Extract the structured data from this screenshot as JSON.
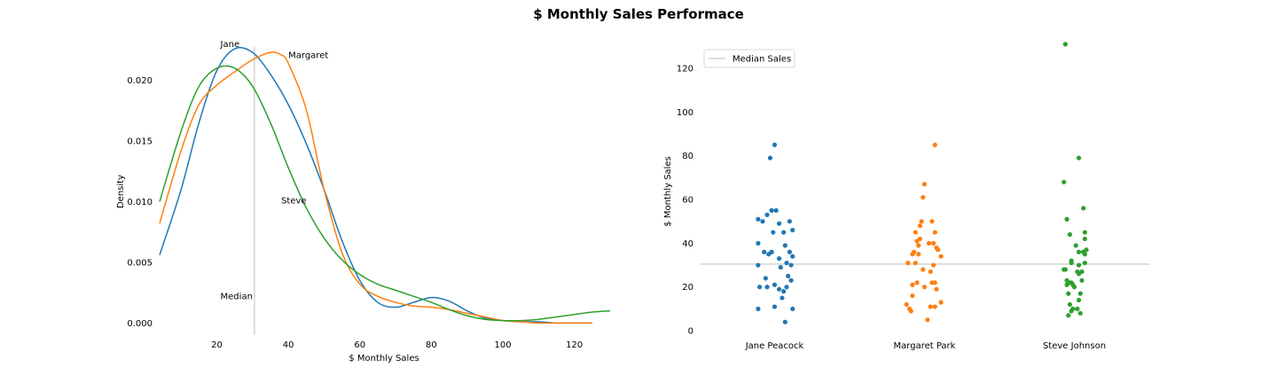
{
  "figure": {
    "title": "$ Monthly Sales Performace"
  },
  "chart_data": [
    {
      "type": "line",
      "subtype": "kde-density",
      "xlabel": "$ Monthly Sales",
      "ylabel": "Density",
      "xlim": [
        4,
        130
      ],
      "ylim": [
        -0.001,
        0.0237
      ],
      "xticks": [
        20,
        40,
        60,
        80,
        100,
        120
      ],
      "yticks": [
        0.0,
        0.005,
        0.01,
        0.015,
        0.02
      ],
      "ytick_labels": [
        "0.000",
        "0.005",
        "0.010",
        "0.015",
        "0.020"
      ],
      "grid": false,
      "median_line": {
        "x": 30.5,
        "color": "#d3d3d3",
        "label": "Median"
      },
      "annotations": [
        {
          "text": "Jane",
          "x": 21,
          "y": 0.023
        },
        {
          "text": "Margaret",
          "x": 40,
          "y": 0.0221
        },
        {
          "text": "Steve",
          "x": 38,
          "y": 0.0101
        },
        {
          "text": "Median",
          "x": 21,
          "y": 0.0022
        }
      ],
      "series": [
        {
          "color": "#1f77b4",
          "x": [
            4,
            10,
            15,
            20,
            25,
            30,
            35,
            40,
            45,
            50,
            55,
            60,
            65,
            70,
            75,
            80,
            85,
            90,
            95,
            100,
            105,
            110,
            115,
            120,
            125
          ],
          "y": [
            0.0056,
            0.011,
            0.0165,
            0.0208,
            0.0226,
            0.0223,
            0.0205,
            0.018,
            0.0148,
            0.011,
            0.0068,
            0.0035,
            0.0017,
            0.0013,
            0.0017,
            0.0021,
            0.0018,
            0.001,
            0.0004,
            0.0002,
            0.0001,
            0.0001,
            0.0,
            0.0,
            0.0
          ]
        },
        {
          "color": "#ff7f0e",
          "x": [
            4,
            10,
            15,
            20,
            25,
            30,
            35,
            38,
            40,
            45,
            50,
            55,
            60,
            65,
            70,
            75,
            80,
            85,
            90,
            95,
            100,
            105,
            110,
            115,
            120,
            125
          ],
          "y": [
            0.0082,
            0.0142,
            0.018,
            0.0196,
            0.0207,
            0.0217,
            0.0223,
            0.0221,
            0.0214,
            0.0176,
            0.011,
            0.0058,
            0.0032,
            0.0022,
            0.0017,
            0.0014,
            0.0013,
            0.0011,
            0.0008,
            0.0005,
            0.0002,
            0.0001,
            0.0,
            0.0,
            0.0,
            0.0
          ]
        },
        {
          "color": "#2ca02c",
          "x": [
            4,
            10,
            15,
            20,
            25,
            30,
            35,
            40,
            45,
            50,
            55,
            60,
            65,
            70,
            75,
            80,
            85,
            90,
            95,
            100,
            105,
            110,
            115,
            120,
            125,
            130
          ],
          "y": [
            0.01,
            0.0158,
            0.0195,
            0.021,
            0.021,
            0.0195,
            0.0165,
            0.0128,
            0.0095,
            0.007,
            0.0052,
            0.004,
            0.0032,
            0.0027,
            0.0022,
            0.0017,
            0.0011,
            0.0006,
            0.0003,
            0.0002,
            0.0002,
            0.0003,
            0.0005,
            0.0007,
            0.0009,
            0.001
          ]
        }
      ]
    },
    {
      "type": "scatter",
      "subtype": "strip",
      "xlabel": "",
      "ylabel": "$ Monthly Sales",
      "categories": [
        "Jane Peacock",
        "Margaret Park",
        "Steve Johnson"
      ],
      "ylim": [
        -2,
        135
      ],
      "yticks": [
        0,
        20,
        40,
        60,
        80,
        100,
        120
      ],
      "grid": false,
      "legend": {
        "placement": "top-left",
        "entries": [
          {
            "label": "Median Sales",
            "color": "#d3d3d3"
          }
        ]
      },
      "median_line": {
        "y": 30.5,
        "color": "#d3d3d3"
      },
      "series": [
        {
          "category": "Jane Peacock",
          "color": "#1f77b4",
          "values": [
            85,
            79,
            55,
            55,
            53,
            51,
            50,
            50,
            49,
            46,
            45,
            45,
            40,
            39,
            36,
            36,
            36,
            35,
            34,
            33,
            31,
            30,
            30,
            29,
            25,
            24,
            23,
            21,
            20,
            20,
            20,
            19,
            18,
            15,
            11,
            10,
            10,
            4
          ],
          "jitter": [
            0.0,
            -0.03,
            -0.02,
            0.01,
            -0.05,
            -0.11,
            -0.08,
            0.1,
            0.03,
            0.12,
            0.06,
            -0.01,
            -0.11,
            0.07,
            0.1,
            -0.07,
            -0.02,
            -0.04,
            0.12,
            0.03,
            0.08,
            -0.11,
            0.11,
            0.04,
            0.09,
            -0.06,
            0.11,
            0.0,
            0.08,
            -0.1,
            -0.05,
            0.03,
            0.06,
            0.05,
            0.0,
            -0.11,
            0.12,
            0.07
          ]
        },
        {
          "category": "Margaret Park",
          "color": "#ff7f0e",
          "values": [
            85,
            67,
            61,
            50,
            50,
            48,
            45,
            45,
            42,
            41,
            40,
            40,
            39,
            38,
            37,
            36,
            35,
            35,
            34,
            31,
            31,
            30,
            28,
            27,
            22,
            22,
            22,
            21,
            20,
            19,
            16,
            13,
            12,
            11,
            11,
            10,
            9,
            5
          ],
          "jitter": [
            0.07,
            0.0,
            -0.01,
            0.05,
            -0.02,
            -0.03,
            0.07,
            -0.06,
            -0.03,
            -0.05,
            0.06,
            0.03,
            -0.04,
            0.08,
            0.09,
            -0.07,
            -0.04,
            -0.08,
            0.11,
            -0.11,
            -0.06,
            0.06,
            -0.01,
            0.04,
            -0.05,
            0.05,
            0.07,
            -0.08,
            0.0,
            0.08,
            -0.08,
            0.11,
            -0.12,
            0.07,
            0.04,
            -0.1,
            -0.09,
            0.02
          ]
        },
        {
          "category": "Steve Johnson",
          "color": "#2ca02c",
          "values": [
            131,
            79,
            68,
            56,
            51,
            45,
            44,
            42,
            39,
            37,
            36,
            36,
            35,
            32,
            31,
            31,
            30,
            28,
            28,
            27,
            27,
            26,
            23,
            23,
            22,
            22,
            21,
            21,
            20,
            17,
            17,
            14,
            12,
            10,
            10,
            9,
            8,
            7
          ],
          "jitter": [
            -0.06,
            0.03,
            -0.07,
            0.06,
            -0.05,
            0.07,
            -0.03,
            0.07,
            0.01,
            0.08,
            0.03,
            0.06,
            0.07,
            -0.02,
            0.07,
            -0.02,
            0.03,
            -0.07,
            -0.06,
            0.05,
            0.02,
            0.03,
            -0.05,
            0.05,
            -0.03,
            -0.02,
            -0.05,
            -0.01,
            0.0,
            -0.04,
            0.04,
            0.03,
            -0.03,
            -0.01,
            0.02,
            -0.02,
            0.04,
            -0.04
          ]
        }
      ]
    }
  ]
}
